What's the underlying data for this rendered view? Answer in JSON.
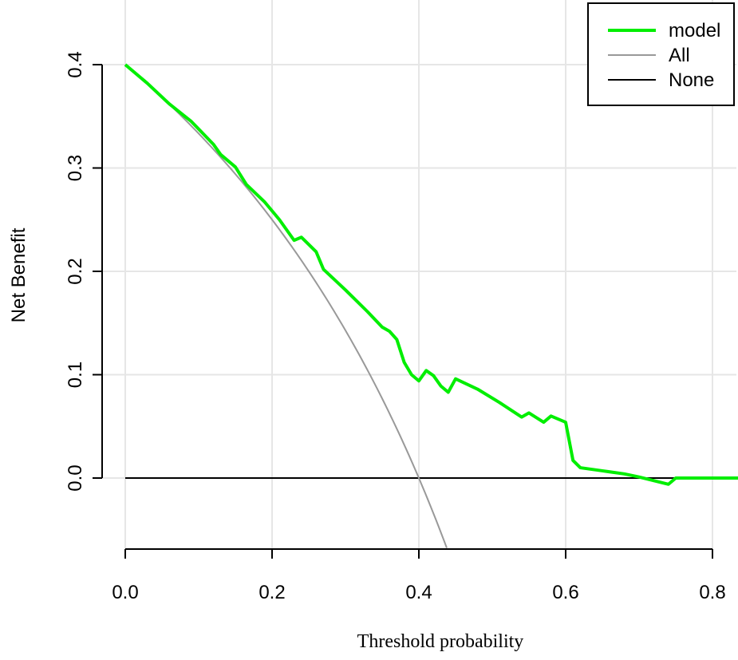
{
  "chart_data": {
    "type": "line",
    "title": "",
    "xlabel": "Threshold probability",
    "ylabel": "Net Benefit",
    "xlim": [
      0,
      0.835
    ],
    "ylim": [
      -0.07,
      0.42
    ],
    "x_ticks": [
      0.0,
      0.2,
      0.4,
      0.6,
      0.8
    ],
    "x_tick_labels": [
      "0.0",
      "0.2",
      "0.4",
      "0.6",
      "0.8"
    ],
    "y_ticks": [
      0.0,
      0.1,
      0.2,
      0.3,
      0.4
    ],
    "y_tick_labels": [
      "0.0",
      "0.1",
      "0.2",
      "0.3",
      "0.4"
    ],
    "grid": true,
    "legend_position": "top-right",
    "series": [
      {
        "name": "model",
        "color": "#00ee00",
        "points": [
          [
            0.0,
            0.4
          ],
          [
            0.03,
            0.382
          ],
          [
            0.06,
            0.362
          ],
          [
            0.09,
            0.345
          ],
          [
            0.12,
            0.323
          ],
          [
            0.13,
            0.313
          ],
          [
            0.15,
            0.301
          ],
          [
            0.165,
            0.284
          ],
          [
            0.19,
            0.267
          ],
          [
            0.21,
            0.25
          ],
          [
            0.23,
            0.23
          ],
          [
            0.24,
            0.233
          ],
          [
            0.26,
            0.219
          ],
          [
            0.27,
            0.202
          ],
          [
            0.3,
            0.182
          ],
          [
            0.33,
            0.161
          ],
          [
            0.35,
            0.146
          ],
          [
            0.36,
            0.142
          ],
          [
            0.37,
            0.134
          ],
          [
            0.38,
            0.112
          ],
          [
            0.39,
            0.1
          ],
          [
            0.4,
            0.094
          ],
          [
            0.41,
            0.104
          ],
          [
            0.42,
            0.099
          ],
          [
            0.43,
            0.089
          ],
          [
            0.44,
            0.083
          ],
          [
            0.45,
            0.096
          ],
          [
            0.48,
            0.086
          ],
          [
            0.51,
            0.073
          ],
          [
            0.54,
            0.059
          ],
          [
            0.55,
            0.063
          ],
          [
            0.57,
            0.054
          ],
          [
            0.58,
            0.06
          ],
          [
            0.6,
            0.054
          ],
          [
            0.61,
            0.017
          ],
          [
            0.62,
            0.01
          ],
          [
            0.65,
            0.007
          ],
          [
            0.68,
            0.004
          ],
          [
            0.7,
            0.001
          ],
          [
            0.74,
            -0.006
          ],
          [
            0.75,
            0.0
          ],
          [
            0.835,
            0.0
          ]
        ]
      },
      {
        "name": "All",
        "color": "#999999",
        "function": "0.4 - 0.6 * x / (1 - x)",
        "x_range": [
          0.0,
          0.438
        ]
      },
      {
        "name": "None",
        "color": "#000000",
        "points": [
          [
            0.0,
            0.0
          ],
          [
            0.835,
            0.0
          ]
        ]
      }
    ]
  }
}
